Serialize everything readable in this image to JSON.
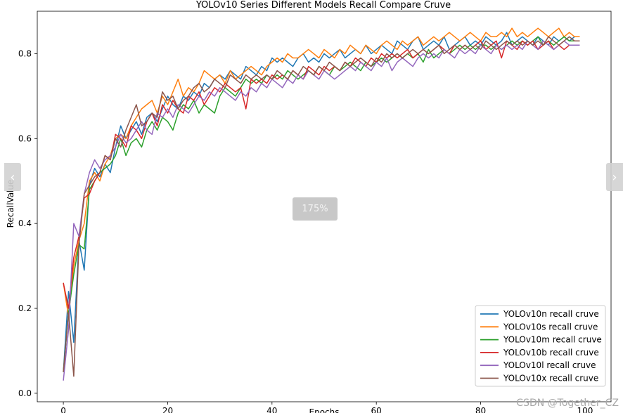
{
  "viewer": {
    "zoom_label": "175%",
    "prev_icon": "‹",
    "next_icon": "›",
    "watermark": "CSDN @Together_CZ"
  },
  "chart_data": {
    "type": "line",
    "title": "YOLOv10 Series Different Models Recall Compare Cruve",
    "xlabel": "Epochs",
    "ylabel": "RecallValue",
    "xlim": [
      -5,
      105
    ],
    "ylim": [
      -0.02,
      0.9
    ],
    "xticks": [
      0,
      20,
      40,
      60,
      80,
      100
    ],
    "yticks": [
      0.0,
      0.2,
      0.4,
      0.6,
      0.8
    ],
    "grid": false,
    "legend_position": "lower-right",
    "x": [
      0,
      1,
      2,
      3,
      4,
      5,
      6,
      7,
      8,
      9,
      10,
      11,
      12,
      13,
      14,
      15,
      16,
      17,
      18,
      19,
      20,
      21,
      22,
      23,
      24,
      25,
      26,
      27,
      28,
      29,
      30,
      31,
      32,
      33,
      34,
      35,
      36,
      37,
      38,
      39,
      40,
      41,
      42,
      43,
      44,
      45,
      46,
      47,
      48,
      49,
      50,
      51,
      52,
      53,
      54,
      55,
      56,
      57,
      58,
      59,
      60,
      61,
      62,
      63,
      64,
      65,
      66,
      67,
      68,
      69,
      70,
      71,
      72,
      73,
      74,
      75,
      76,
      77,
      78,
      79,
      80,
      81,
      82,
      83,
      84,
      85,
      86,
      87,
      88,
      89,
      90,
      91,
      92,
      93,
      94,
      95,
      96,
      97,
      98,
      99
    ],
    "series": [
      {
        "name": "YOLOv10n recall cruve",
        "color": "#1f77b4",
        "values": [
          0.05,
          0.24,
          0.12,
          0.36,
          0.29,
          0.49,
          0.53,
          0.51,
          0.54,
          0.52,
          0.58,
          0.63,
          0.6,
          0.62,
          0.64,
          0.61,
          0.65,
          0.66,
          0.64,
          0.67,
          0.7,
          0.68,
          0.67,
          0.7,
          0.69,
          0.71,
          0.7,
          0.73,
          0.72,
          0.74,
          0.75,
          0.74,
          0.76,
          0.75,
          0.74,
          0.77,
          0.76,
          0.75,
          0.77,
          0.76,
          0.79,
          0.78,
          0.79,
          0.78,
          0.77,
          0.79,
          0.8,
          0.78,
          0.79,
          0.78,
          0.8,
          0.79,
          0.8,
          0.81,
          0.79,
          0.8,
          0.81,
          0.8,
          0.82,
          0.8,
          0.81,
          0.82,
          0.81,
          0.8,
          0.83,
          0.82,
          0.81,
          0.83,
          0.84,
          0.81,
          0.82,
          0.83,
          0.82,
          0.84,
          0.81,
          0.82,
          0.83,
          0.84,
          0.82,
          0.83,
          0.82,
          0.84,
          0.83,
          0.82,
          0.83,
          0.85,
          0.82,
          0.83,
          0.84,
          0.83,
          0.82,
          0.84,
          0.83,
          0.82,
          0.84,
          0.83,
          0.84,
          0.83,
          0.84,
          0.84
        ]
      },
      {
        "name": "YOLOv10s recall cruve",
        "color": "#ff7f0e",
        "values": [
          0.26,
          0.18,
          0.3,
          0.36,
          0.4,
          0.5,
          0.52,
          0.5,
          0.54,
          0.56,
          0.6,
          0.61,
          0.6,
          0.63,
          0.65,
          0.67,
          0.68,
          0.69,
          0.66,
          0.7,
          0.68,
          0.71,
          0.74,
          0.7,
          0.72,
          0.71,
          0.73,
          0.76,
          0.75,
          0.74,
          0.75,
          0.73,
          0.76,
          0.74,
          0.75,
          0.76,
          0.77,
          0.76,
          0.75,
          0.77,
          0.78,
          0.79,
          0.78,
          0.8,
          0.79,
          0.79,
          0.8,
          0.81,
          0.8,
          0.79,
          0.81,
          0.8,
          0.79,
          0.81,
          0.8,
          0.82,
          0.81,
          0.8,
          0.82,
          0.81,
          0.8,
          0.82,
          0.83,
          0.82,
          0.81,
          0.83,
          0.82,
          0.83,
          0.84,
          0.82,
          0.83,
          0.84,
          0.83,
          0.84,
          0.85,
          0.84,
          0.83,
          0.84,
          0.85,
          0.84,
          0.83,
          0.85,
          0.84,
          0.84,
          0.85,
          0.84,
          0.86,
          0.84,
          0.85,
          0.84,
          0.85,
          0.86,
          0.85,
          0.84,
          0.85,
          0.86,
          0.84,
          0.85,
          0.84,
          0.84
        ]
      },
      {
        "name": "YOLOv10m recall cruve",
        "color": "#2ca02c",
        "values": [
          0.05,
          0.19,
          0.28,
          0.35,
          0.34,
          0.48,
          0.5,
          0.52,
          0.53,
          0.54,
          0.56,
          0.6,
          0.56,
          0.59,
          0.6,
          0.58,
          0.62,
          0.64,
          0.62,
          0.65,
          0.64,
          0.62,
          0.66,
          0.68,
          0.67,
          0.69,
          0.66,
          0.68,
          0.67,
          0.66,
          0.7,
          0.72,
          0.71,
          0.7,
          0.72,
          0.74,
          0.73,
          0.74,
          0.73,
          0.75,
          0.74,
          0.75,
          0.74,
          0.76,
          0.75,
          0.74,
          0.75,
          0.76,
          0.75,
          0.77,
          0.76,
          0.75,
          0.77,
          0.76,
          0.77,
          0.78,
          0.77,
          0.76,
          0.78,
          0.77,
          0.78,
          0.79,
          0.78,
          0.79,
          0.8,
          0.79,
          0.8,
          0.79,
          0.8,
          0.78,
          0.81,
          0.79,
          0.8,
          0.81,
          0.8,
          0.81,
          0.82,
          0.81,
          0.82,
          0.81,
          0.82,
          0.82,
          0.81,
          0.82,
          0.81,
          0.82,
          0.83,
          0.82,
          0.83,
          0.82,
          0.83,
          0.84,
          0.82,
          0.83,
          0.82,
          0.83,
          0.84,
          0.83,
          0.83,
          0.83
        ]
      },
      {
        "name": "YOLOv10b recall cruve",
        "color": "#d62728",
        "values": [
          0.26,
          0.2,
          0.32,
          0.37,
          0.46,
          0.47,
          0.5,
          0.52,
          0.56,
          0.55,
          0.61,
          0.6,
          0.58,
          0.63,
          0.62,
          0.6,
          0.64,
          0.66,
          0.63,
          0.68,
          0.66,
          0.69,
          0.67,
          0.66,
          0.7,
          0.69,
          0.71,
          0.68,
          0.7,
          0.72,
          0.71,
          0.73,
          0.72,
          0.71,
          0.72,
          0.67,
          0.74,
          0.73,
          0.74,
          0.73,
          0.75,
          0.74,
          0.75,
          0.74,
          0.76,
          0.75,
          0.74,
          0.77,
          0.76,
          0.75,
          0.77,
          0.76,
          0.77,
          0.76,
          0.78,
          0.77,
          0.79,
          0.78,
          0.77,
          0.79,
          0.78,
          0.8,
          0.79,
          0.8,
          0.79,
          0.8,
          0.81,
          0.79,
          0.8,
          0.81,
          0.8,
          0.81,
          0.82,
          0.81,
          0.8,
          0.82,
          0.81,
          0.82,
          0.81,
          0.82,
          0.83,
          0.81,
          0.82,
          0.83,
          0.79,
          0.83,
          0.82,
          0.81,
          0.83,
          0.82,
          0.83,
          0.81,
          0.82,
          0.83,
          0.81,
          0.82,
          0.81,
          0.82,
          0.82,
          0.82
        ]
      },
      {
        "name": "YOLOv10l recall cruve",
        "color": "#9467bd",
        "values": [
          0.03,
          0.15,
          0.4,
          0.37,
          0.47,
          0.52,
          0.55,
          0.53,
          0.55,
          0.56,
          0.58,
          0.61,
          0.59,
          0.6,
          0.62,
          0.64,
          0.62,
          0.61,
          0.66,
          0.65,
          0.67,
          0.65,
          0.68,
          0.67,
          0.66,
          0.68,
          0.7,
          0.69,
          0.71,
          0.7,
          0.72,
          0.71,
          0.7,
          0.69,
          0.71,
          0.7,
          0.72,
          0.71,
          0.73,
          0.72,
          0.74,
          0.73,
          0.72,
          0.74,
          0.73,
          0.75,
          0.74,
          0.76,
          0.75,
          0.74,
          0.76,
          0.75,
          0.74,
          0.75,
          0.76,
          0.77,
          0.76,
          0.78,
          0.77,
          0.76,
          0.78,
          0.77,
          0.79,
          0.76,
          0.78,
          0.79,
          0.78,
          0.77,
          0.79,
          0.8,
          0.79,
          0.8,
          0.79,
          0.81,
          0.8,
          0.79,
          0.81,
          0.8,
          0.81,
          0.8,
          0.82,
          0.81,
          0.8,
          0.82,
          0.81,
          0.82,
          0.81,
          0.82,
          0.81,
          0.83,
          0.82,
          0.81,
          0.83,
          0.82,
          0.81,
          0.82,
          0.83,
          0.82,
          0.82,
          0.82
        ]
      },
      {
        "name": "YOLOv10x recall cruve",
        "color": "#8c564b",
        "values": [
          0.05,
          0.19,
          0.04,
          0.35,
          0.47,
          0.49,
          0.51,
          0.52,
          0.56,
          0.55,
          0.6,
          0.58,
          0.62,
          0.65,
          0.68,
          0.63,
          0.64,
          0.66,
          0.65,
          0.71,
          0.69,
          0.7,
          0.67,
          0.69,
          0.7,
          0.72,
          0.73,
          0.71,
          0.72,
          0.74,
          0.73,
          0.72,
          0.75,
          0.74,
          0.73,
          0.75,
          0.74,
          0.75,
          0.74,
          0.75,
          0.74,
          0.76,
          0.75,
          0.74,
          0.76,
          0.75,
          0.77,
          0.76,
          0.75,
          0.77,
          0.76,
          0.78,
          0.77,
          0.76,
          0.78,
          0.77,
          0.78,
          0.79,
          0.78,
          0.77,
          0.79,
          0.78,
          0.8,
          0.79,
          0.8,
          0.79,
          0.8,
          0.81,
          0.8,
          0.81,
          0.8,
          0.81,
          0.82,
          0.8,
          0.81,
          0.82,
          0.81,
          0.82,
          0.81,
          0.82,
          0.81,
          0.83,
          0.82,
          0.81,
          0.82,
          0.83,
          0.82,
          0.83,
          0.82,
          0.83,
          0.82,
          0.83,
          0.82,
          0.84,
          0.83,
          0.82,
          0.83,
          0.84,
          0.83,
          0.83
        ]
      }
    ]
  }
}
